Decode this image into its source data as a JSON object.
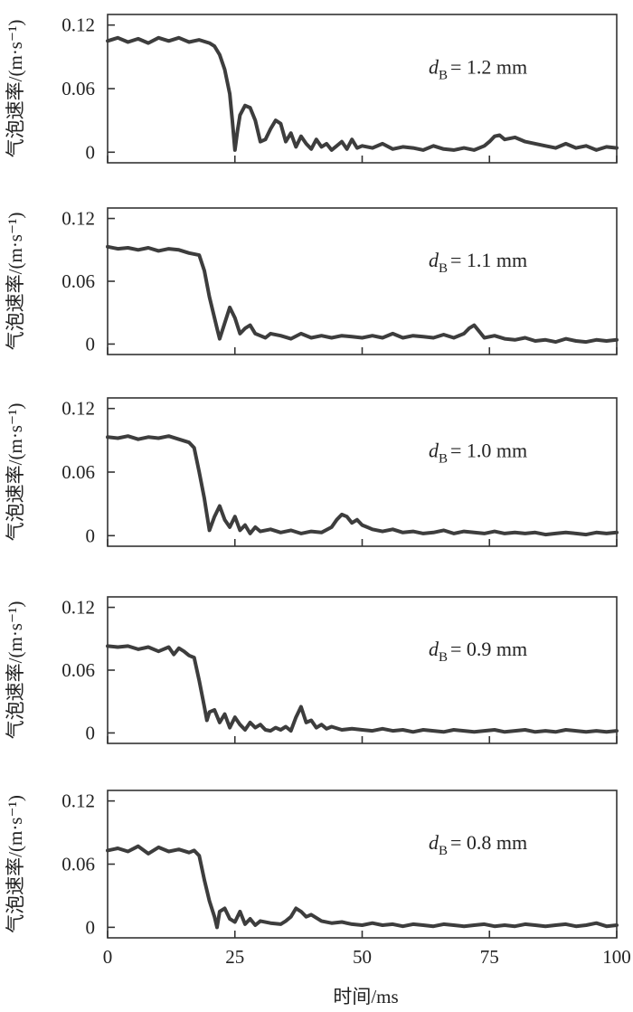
{
  "chart_data": [
    {
      "type": "line",
      "ylabel": "气泡速率/(m·s⁻¹)",
      "ylim": [
        -0.01,
        0.13
      ],
      "yticks": [
        "0",
        "0.06",
        "0.12"
      ],
      "xlim": [
        0,
        100
      ],
      "annotation": {
        "var": "d",
        "sub": "B",
        "text": "= 1.2 mm"
      },
      "line_color": "#3d3d3d",
      "series": [
        {
          "x": [
            0,
            2,
            4,
            6,
            8,
            10,
            12,
            14,
            16,
            18,
            20,
            21,
            22,
            23,
            24,
            24.5,
            25,
            25.5,
            26,
            27,
            28,
            29,
            30,
            31,
            32,
            33,
            34,
            35,
            36,
            37,
            38,
            39,
            40,
            41,
            42,
            43,
            44,
            45,
            46,
            47,
            48,
            49,
            50,
            52,
            54,
            56,
            58,
            60,
            62,
            64,
            66,
            68,
            70,
            72,
            74,
            75,
            76,
            77,
            78,
            80,
            82,
            84,
            86,
            88,
            90,
            92,
            94,
            96,
            98,
            100
          ],
          "y": [
            0.105,
            0.108,
            0.104,
            0.107,
            0.103,
            0.108,
            0.105,
            0.108,
            0.104,
            0.106,
            0.103,
            0.1,
            0.092,
            0.078,
            0.055,
            0.03,
            0.002,
            0.02,
            0.035,
            0.044,
            0.042,
            0.03,
            0.01,
            0.012,
            0.022,
            0.03,
            0.027,
            0.01,
            0.018,
            0.005,
            0.015,
            0.008,
            0.003,
            0.012,
            0.005,
            0.008,
            0.002,
            0.006,
            0.01,
            0.003,
            0.012,
            0.004,
            0.006,
            0.004,
            0.008,
            0.003,
            0.005,
            0.004,
            0.002,
            0.006,
            0.003,
            0.002,
            0.004,
            0.002,
            0.006,
            0.01,
            0.015,
            0.016,
            0.012,
            0.014,
            0.01,
            0.008,
            0.006,
            0.004,
            0.008,
            0.004,
            0.006,
            0.002,
            0.005,
            0.004
          ]
        }
      ]
    },
    {
      "type": "line",
      "ylabel": "气泡速率/(m·s⁻¹)",
      "ylim": [
        -0.01,
        0.13
      ],
      "yticks": [
        "0",
        "0.06",
        "0.12"
      ],
      "xlim": [
        0,
        100
      ],
      "annotation": {
        "var": "d",
        "sub": "B",
        "text": "= 1.1 mm"
      },
      "line_color": "#3d3d3d",
      "series": [
        {
          "x": [
            0,
            2,
            4,
            6,
            8,
            10,
            12,
            14,
            16,
            18,
            19,
            20,
            21,
            21.5,
            22,
            23,
            24,
            25,
            26,
            27,
            28,
            29,
            30,
            31,
            32,
            34,
            36,
            38,
            40,
            42,
            44,
            46,
            48,
            50,
            52,
            54,
            56,
            58,
            60,
            62,
            64,
            66,
            68,
            70,
            71,
            72,
            73,
            74,
            76,
            78,
            80,
            82,
            84,
            86,
            88,
            90,
            92,
            94,
            96,
            98,
            100
          ],
          "y": [
            0.093,
            0.091,
            0.092,
            0.09,
            0.092,
            0.089,
            0.091,
            0.09,
            0.087,
            0.085,
            0.07,
            0.045,
            0.025,
            0.015,
            0.005,
            0.02,
            0.035,
            0.025,
            0.01,
            0.015,
            0.018,
            0.01,
            0.008,
            0.006,
            0.01,
            0.008,
            0.005,
            0.01,
            0.006,
            0.008,
            0.006,
            0.008,
            0.007,
            0.006,
            0.008,
            0.006,
            0.01,
            0.006,
            0.008,
            0.007,
            0.006,
            0.009,
            0.006,
            0.01,
            0.015,
            0.018,
            0.012,
            0.006,
            0.008,
            0.005,
            0.004,
            0.006,
            0.003,
            0.004,
            0.002,
            0.005,
            0.003,
            0.002,
            0.004,
            0.003,
            0.004
          ]
        }
      ]
    },
    {
      "type": "line",
      "ylabel": "气泡速率/(m·s⁻¹)",
      "ylim": [
        -0.01,
        0.13
      ],
      "yticks": [
        "0",
        "0.06",
        "0.12"
      ],
      "xlim": [
        0,
        100
      ],
      "annotation": {
        "var": "d",
        "sub": "B",
        "text": "= 1.0 mm"
      },
      "line_color": "#3d3d3d",
      "series": [
        {
          "x": [
            0,
            2,
            4,
            6,
            8,
            10,
            12,
            14,
            16,
            17,
            18,
            19,
            19.5,
            20,
            21,
            22,
            23,
            24,
            25,
            26,
            27,
            28,
            29,
            30,
            32,
            34,
            36,
            38,
            40,
            42,
            44,
            45,
            46,
            47,
            48,
            49,
            50,
            51,
            52,
            54,
            56,
            58,
            60,
            62,
            64,
            66,
            68,
            70,
            72,
            74,
            76,
            78,
            80,
            82,
            84,
            86,
            88,
            90,
            92,
            94,
            96,
            98,
            100
          ],
          "y": [
            0.093,
            0.092,
            0.094,
            0.091,
            0.093,
            0.092,
            0.094,
            0.091,
            0.088,
            0.083,
            0.06,
            0.035,
            0.02,
            0.005,
            0.018,
            0.028,
            0.015,
            0.008,
            0.018,
            0.005,
            0.01,
            0.002,
            0.008,
            0.004,
            0.006,
            0.003,
            0.005,
            0.002,
            0.004,
            0.003,
            0.008,
            0.015,
            0.02,
            0.018,
            0.012,
            0.015,
            0.01,
            0.008,
            0.006,
            0.004,
            0.006,
            0.003,
            0.004,
            0.002,
            0.003,
            0.005,
            0.002,
            0.004,
            0.003,
            0.002,
            0.004,
            0.002,
            0.003,
            0.002,
            0.003,
            0.001,
            0.002,
            0.003,
            0.002,
            0.001,
            0.003,
            0.002,
            0.003
          ]
        }
      ]
    },
    {
      "type": "line",
      "ylabel": "气泡速率/(m·s⁻¹)",
      "ylim": [
        -0.01,
        0.13
      ],
      "yticks": [
        "0",
        "0.06",
        "0.12"
      ],
      "xlim": [
        0,
        100
      ],
      "annotation": {
        "var": "d",
        "sub": "B",
        "text": "= 0.9 mm"
      },
      "line_color": "#3d3d3d",
      "series": [
        {
          "x": [
            0,
            2,
            4,
            6,
            8,
            10,
            12,
            13,
            14,
            15,
            16,
            17,
            18,
            19,
            19.5,
            20,
            21,
            22,
            23,
            24,
            25,
            26,
            27,
            28,
            29,
            30,
            31,
            32,
            33,
            34,
            35,
            36,
            37,
            38,
            39,
            40,
            41,
            42,
            43,
            44,
            46,
            48,
            50,
            52,
            54,
            56,
            58,
            60,
            62,
            64,
            66,
            68,
            70,
            72,
            74,
            76,
            78,
            80,
            82,
            84,
            86,
            88,
            90,
            92,
            94,
            96,
            98,
            100
          ],
          "y": [
            0.083,
            0.082,
            0.083,
            0.08,
            0.082,
            0.078,
            0.082,
            0.075,
            0.081,
            0.078,
            0.074,
            0.072,
            0.05,
            0.025,
            0.012,
            0.02,
            0.022,
            0.01,
            0.018,
            0.005,
            0.015,
            0.008,
            0.003,
            0.01,
            0.005,
            0.008,
            0.003,
            0.002,
            0.005,
            0.003,
            0.006,
            0.002,
            0.015,
            0.025,
            0.01,
            0.012,
            0.005,
            0.008,
            0.004,
            0.006,
            0.003,
            0.004,
            0.003,
            0.002,
            0.004,
            0.002,
            0.003,
            0.001,
            0.003,
            0.002,
            0.001,
            0.003,
            0.002,
            0.001,
            0.002,
            0.003,
            0.001,
            0.002,
            0.003,
            0.001,
            0.002,
            0.001,
            0.003,
            0.002,
            0.001,
            0.002,
            0.001,
            0.002
          ]
        }
      ]
    },
    {
      "type": "line",
      "ylabel": "气泡速率/(m·s⁻¹)",
      "ylim": [
        -0.01,
        0.13
      ],
      "yticks": [
        "0",
        "0.06",
        "0.12"
      ],
      "xlim": [
        0,
        100
      ],
      "xlabel": "时间/ms",
      "xticks": [
        "0",
        "25",
        "50",
        "75",
        "100"
      ],
      "annotation": {
        "var": "d",
        "sub": "B",
        "text": "= 0.8 mm"
      },
      "line_color": "#3d3d3d",
      "series": [
        {
          "x": [
            0,
            2,
            4,
            6,
            8,
            10,
            12,
            14,
            16,
            17,
            18,
            19,
            19.5,
            20,
            21,
            21.5,
            22,
            23,
            24,
            25,
            26,
            27,
            28,
            29,
            30,
            32,
            34,
            35,
            36,
            37,
            38,
            39,
            40,
            42,
            44,
            46,
            48,
            50,
            52,
            54,
            56,
            58,
            60,
            62,
            64,
            66,
            68,
            70,
            72,
            74,
            76,
            78,
            80,
            82,
            84,
            86,
            88,
            90,
            92,
            94,
            96,
            98,
            100
          ],
          "y": [
            0.073,
            0.075,
            0.072,
            0.077,
            0.07,
            0.076,
            0.072,
            0.074,
            0.071,
            0.073,
            0.068,
            0.045,
            0.035,
            0.025,
            0.01,
            0.0,
            0.015,
            0.018,
            0.008,
            0.005,
            0.015,
            0.003,
            0.008,
            0.002,
            0.006,
            0.004,
            0.003,
            0.006,
            0.01,
            0.018,
            0.015,
            0.01,
            0.012,
            0.006,
            0.004,
            0.005,
            0.003,
            0.002,
            0.004,
            0.002,
            0.003,
            0.001,
            0.003,
            0.002,
            0.001,
            0.003,
            0.002,
            0.001,
            0.002,
            0.003,
            0.001,
            0.002,
            0.001,
            0.003,
            0.002,
            0.001,
            0.002,
            0.003,
            0.001,
            0.002,
            0.004,
            0.001,
            0.002
          ]
        }
      ]
    }
  ]
}
